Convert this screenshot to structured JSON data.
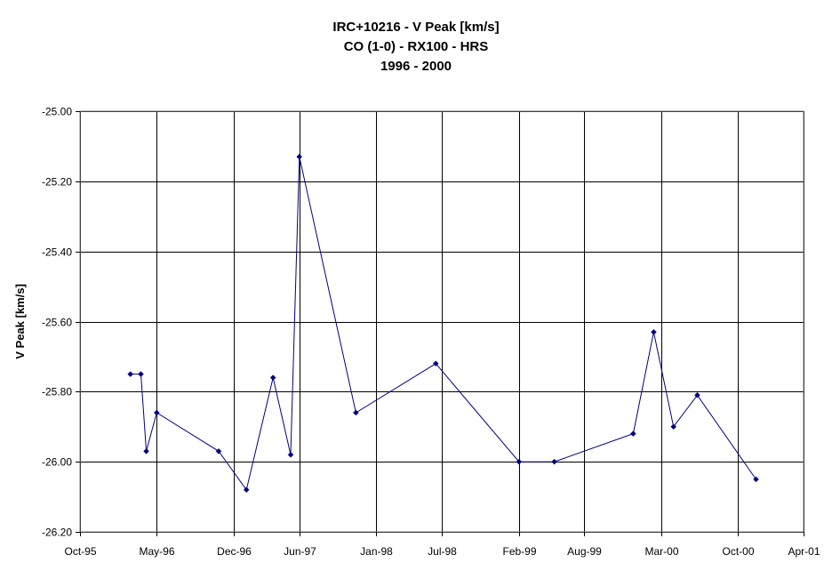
{
  "chart_data": {
    "type": "line",
    "title_lines": [
      "IRC+10216 - V Peak [km/s]",
      "CO (1-0) - RX100 - HRS",
      "1996 - 2000"
    ],
    "xlabel": "",
    "ylabel": "V Peak [km/s]",
    "x_tick_labels": [
      "Oct-95",
      "May-96",
      "Dec-96",
      "Jun-97",
      "Jan-98",
      "Jul-98",
      "Feb-99",
      "Aug-99",
      "Mar-00",
      "Oct-00",
      "Apr-01"
    ],
    "x_tick_dates": [
      "1995-10-01",
      "1996-05-01",
      "1996-12-01",
      "1997-06-01",
      "1998-01-01",
      "1998-07-01",
      "1999-02-01",
      "1999-08-01",
      "2000-03-01",
      "2000-10-01",
      "2001-04-01"
    ],
    "ylim": [
      -26.2,
      -25.0
    ],
    "y_tick_values": [
      -25.0,
      -25.2,
      -25.4,
      -25.6,
      -25.8,
      -26.0,
      -26.2
    ],
    "y_tick_labels": [
      "-25.00",
      "-25.20",
      "-25.40",
      "-25.60",
      "-25.80",
      "-26.00",
      "-26.20"
    ],
    "grid": true,
    "series": [
      {
        "color": "#000080",
        "points": [
          {
            "x": "1996-02-18",
            "y": -25.75
          },
          {
            "x": "1996-03-18",
            "y": -25.75
          },
          {
            "x": "1996-04-02",
            "y": -25.97
          },
          {
            "x": "1996-05-01",
            "y": -25.86
          },
          {
            "x": "1996-10-20",
            "y": -25.97
          },
          {
            "x": "1997-01-05",
            "y": -26.08
          },
          {
            "x": "1997-03-20",
            "y": -25.76
          },
          {
            "x": "1997-05-08",
            "y": -25.98
          },
          {
            "x": "1997-06-01",
            "y": -25.13
          },
          {
            "x": "1997-11-05",
            "y": -25.86
          },
          {
            "x": "1998-06-15",
            "y": -25.72
          },
          {
            "x": "1999-02-01",
            "y": -26.0
          },
          {
            "x": "1999-05-10",
            "y": -26.0
          },
          {
            "x": "1999-12-15",
            "y": -25.92
          },
          {
            "x": "2000-02-10",
            "y": -25.63
          },
          {
            "x": "2000-04-05",
            "y": -25.9
          },
          {
            "x": "2000-06-10",
            "y": -25.81
          },
          {
            "x": "2000-11-20",
            "y": -26.05
          }
        ]
      }
    ]
  }
}
